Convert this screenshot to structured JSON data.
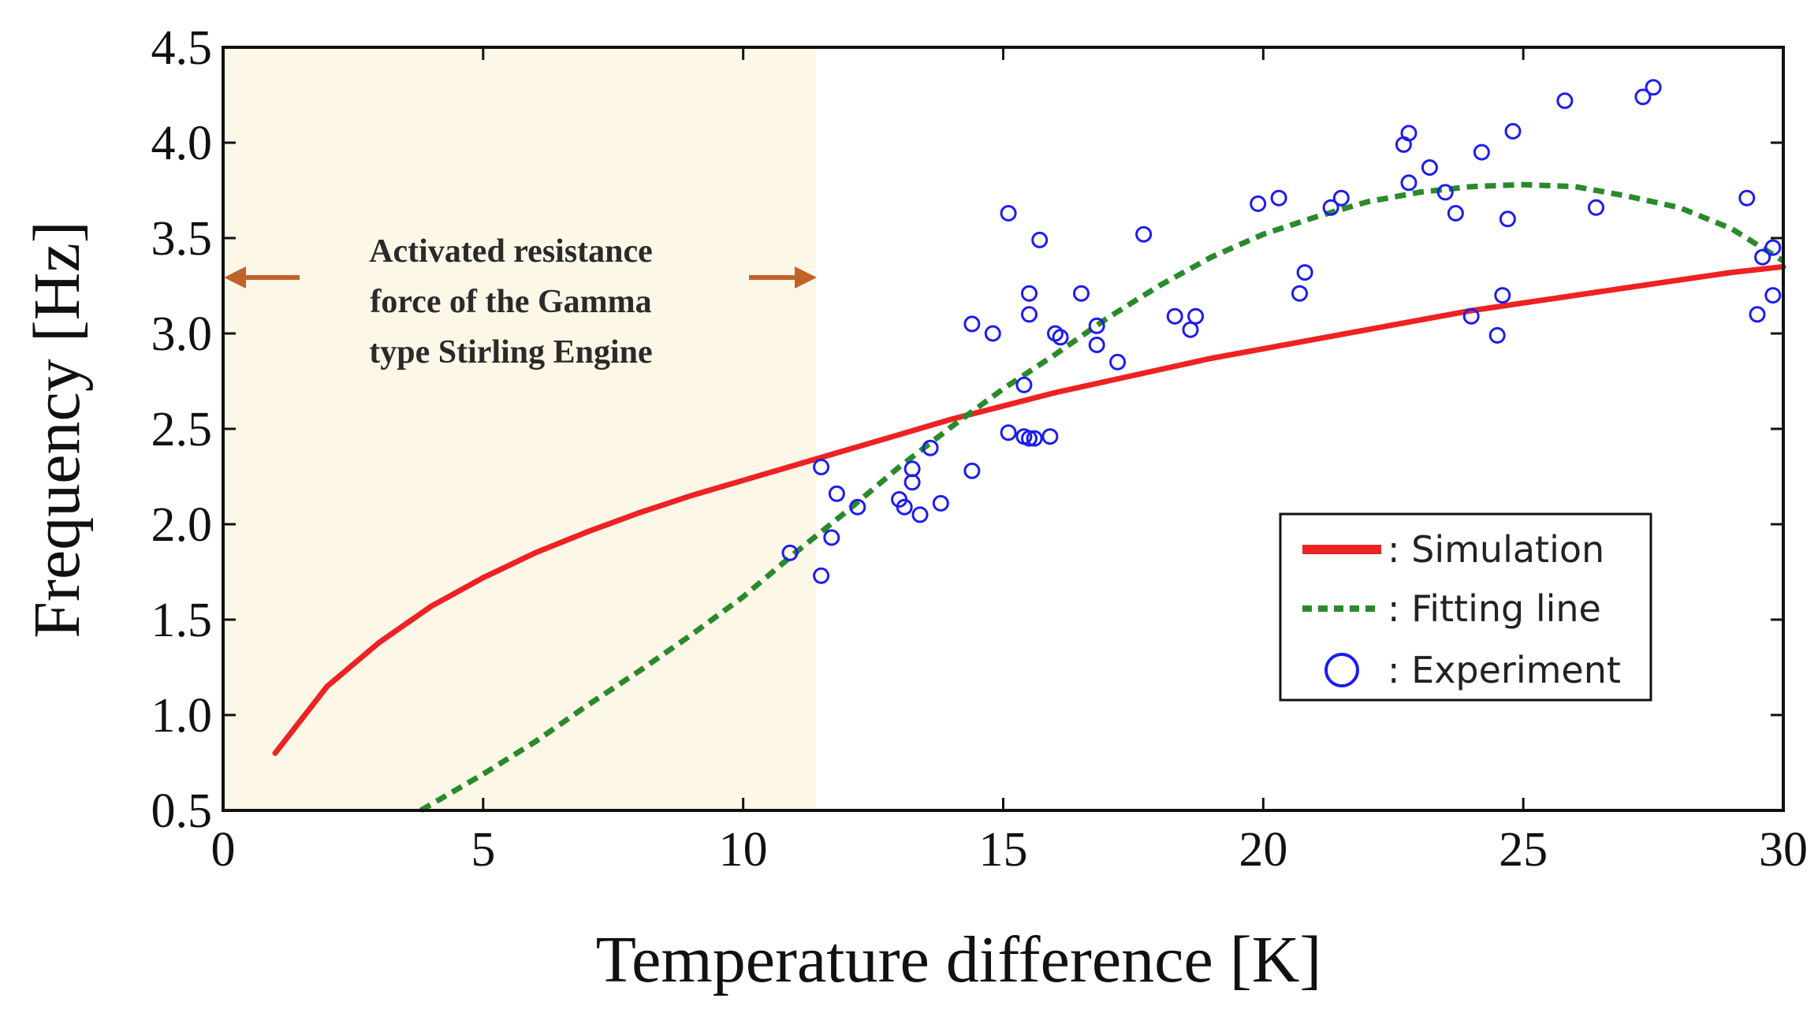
{
  "chart_data": {
    "type": "scatter",
    "title": "",
    "xlabel": "Temperature difference [K]",
    "ylabel": "Frequency [Hz]",
    "xlim": [
      0,
      30
    ],
    "ylim": [
      0.5,
      4.5
    ],
    "xticks": [
      0,
      5,
      10,
      15,
      20,
      25,
      30
    ],
    "xtick_labels": [
      "0",
      "5",
      "10",
      "15",
      "20",
      "25",
      "30"
    ],
    "yticks": [
      0.5,
      1.0,
      1.5,
      2.0,
      2.5,
      3.0,
      3.5,
      4.0,
      4.5
    ],
    "ytick_labels": [
      "0.5",
      "1.0",
      "1.5",
      "2.0",
      "2.5",
      "3.0",
      "3.5",
      "4.0",
      "4.5"
    ],
    "grid": false,
    "legend_position": "bottom-right",
    "shaded_region": {
      "x_start": 0,
      "x_end": 11.4,
      "color": "#fdf7e8",
      "label_lines": [
        "Activated resistance",
        "force of the Gamma",
        "type Stirling Engine"
      ],
      "arrow_color": "#c0632a"
    },
    "series": [
      {
        "name": "Simulation",
        "legend_label": ": Simulation",
        "kind": "line",
        "color": "#ee2222",
        "x": [
          1,
          2,
          3,
          4,
          5,
          6,
          7,
          8,
          9,
          10,
          11,
          12,
          13,
          14,
          15,
          16,
          17,
          18,
          19,
          20,
          21,
          22,
          23,
          24,
          25,
          26,
          27,
          28,
          29,
          30
        ],
        "y": [
          0.8,
          1.15,
          1.38,
          1.57,
          1.72,
          1.85,
          1.96,
          2.06,
          2.15,
          2.23,
          2.31,
          2.39,
          2.47,
          2.55,
          2.62,
          2.69,
          2.75,
          2.81,
          2.87,
          2.92,
          2.97,
          3.02,
          3.07,
          3.12,
          3.16,
          3.2,
          3.24,
          3.28,
          3.32,
          3.35
        ]
      },
      {
        "name": "Fitting line",
        "legend_label": ": Fitting line",
        "kind": "dashed-line",
        "color": "#2a8a2a",
        "x": [
          3.8,
          5,
          6,
          7,
          8,
          9,
          10,
          11,
          12,
          13,
          14,
          15,
          16,
          17,
          18,
          19,
          20,
          21,
          22,
          23,
          24,
          25,
          26,
          27,
          28,
          29,
          30
        ],
        "y": [
          0.5,
          0.69,
          0.86,
          1.05,
          1.23,
          1.42,
          1.62,
          1.85,
          2.07,
          2.3,
          2.51,
          2.71,
          2.89,
          3.08,
          3.25,
          3.4,
          3.52,
          3.61,
          3.69,
          3.74,
          3.77,
          3.78,
          3.77,
          3.72,
          3.66,
          3.55,
          3.38
        ]
      },
      {
        "name": "Experiment",
        "legend_label": ": Experiment",
        "kind": "scatter",
        "color": "#1c1cf0",
        "x": [
          10.9,
          11.5,
          11.5,
          11.7,
          11.8,
          12.2,
          13.0,
          13.1,
          13.25,
          13.25,
          13.4,
          13.6,
          13.8,
          14.4,
          14.4,
          14.8,
          15.1,
          15.1,
          15.4,
          15.4,
          15.5,
          15.5,
          15.5,
          15.6,
          15.7,
          15.9,
          16.0,
          16.1,
          16.5,
          16.8,
          16.8,
          17.2,
          17.7,
          18.3,
          18.6,
          18.7,
          19.9,
          20.3,
          20.7,
          20.8,
          21.3,
          21.5,
          22.7,
          22.8,
          22.8,
          23.2,
          23.5,
          23.7,
          24.0,
          24.2,
          24.5,
          24.6,
          24.7,
          24.8,
          25.8,
          26.4,
          27.3,
          27.5,
          29.3,
          29.5,
          29.6,
          29.8,
          29.8
        ],
        "y": [
          1.85,
          2.3,
          1.73,
          1.93,
          2.16,
          2.09,
          2.13,
          2.09,
          2.29,
          2.22,
          2.05,
          2.4,
          2.11,
          2.28,
          3.05,
          3.0,
          3.63,
          2.48,
          2.73,
          2.46,
          3.1,
          3.21,
          2.45,
          2.45,
          3.49,
          2.46,
          3.0,
          2.98,
          3.21,
          3.04,
          2.94,
          2.85,
          3.52,
          3.09,
          3.02,
          3.09,
          3.68,
          3.71,
          3.21,
          3.32,
          3.66,
          3.71,
          3.99,
          4.05,
          3.79,
          3.87,
          3.74,
          3.63,
          3.09,
          3.95,
          2.99,
          3.2,
          3.6,
          4.06,
          4.22,
          3.66,
          4.24,
          4.29,
          3.71,
          3.1,
          3.4,
          3.45,
          3.2
        ]
      }
    ]
  }
}
